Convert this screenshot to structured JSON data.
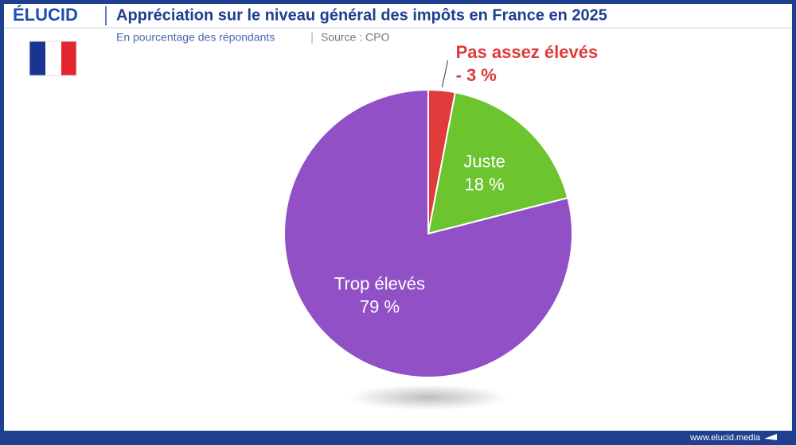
{
  "brand": "ÉLUCID",
  "footer": "www.elucid.media",
  "chart_data": {
    "type": "pie",
    "title": "Appréciation sur le niveau général des impôts en France en 2025",
    "subtitle": "En pourcentage des répondants",
    "source": "Source : CPO",
    "categories": [
      "Pas assez élevés",
      "Juste",
      "Trop élevés"
    ],
    "values": [
      3,
      18,
      79
    ],
    "value_labels": [
      "3 %",
      "18 %",
      "79 %"
    ],
    "label_separator": "-",
    "colors": [
      "#e03a3a",
      "#6cc52e",
      "#9150c5"
    ]
  }
}
